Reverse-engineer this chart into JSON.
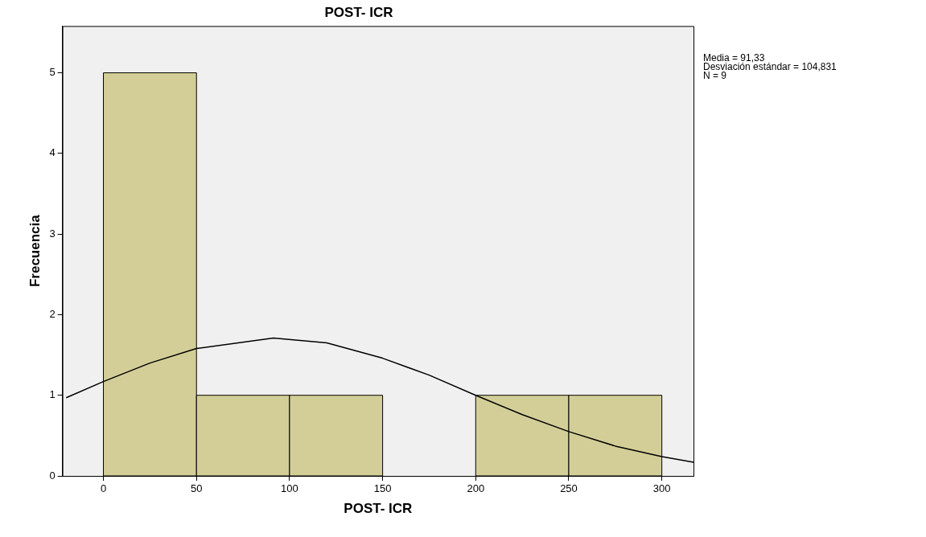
{
  "chart_data": {
    "type": "histogram",
    "title": "POST- ICR",
    "xlabel": "POST- ICR",
    "ylabel": "Frecuencia",
    "bins": [
      0,
      50,
      100,
      150,
      200,
      250,
      300
    ],
    "values": [
      5,
      1,
      1,
      0,
      1,
      1
    ],
    "color": "#d3ce97",
    "series": [
      {
        "type": "line",
        "color": "#000000",
        "x": [
          -20,
          0,
          25,
          50,
          91.33,
          120,
          150,
          175,
          200,
          225,
          250,
          275,
          300,
          317
        ],
        "values": [
          0.97,
          1.17,
          1.4,
          1.58,
          1.71,
          1.65,
          1.46,
          1.25,
          1.0,
          0.76,
          0.55,
          0.37,
          0.24,
          0.17
        ]
      }
    ],
    "xlim": [
      -22,
      317
    ],
    "ylim": [
      0,
      5.58
    ],
    "xticks": [
      0,
      50,
      100,
      150,
      200,
      250,
      300
    ],
    "yticks": [
      0,
      1,
      2,
      3,
      4,
      5
    ],
    "grid": false,
    "legend": false,
    "marker": "none",
    "line_style": "solid",
    "annotations": [
      "Media = 91,33",
      "Desviación estándar = 104,831",
      "N = 9"
    ]
  }
}
